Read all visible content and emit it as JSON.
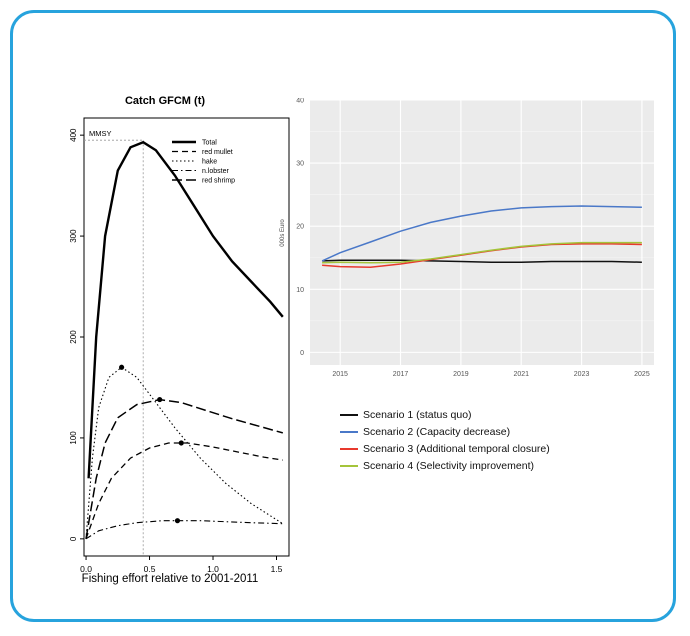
{
  "colors": {
    "frame_border": "#27a3dd"
  },
  "chart_data": [
    {
      "type": "line",
      "title": "Catch GFCM (t)",
      "xlabel": "Fishing effort relative to 2001-2011",
      "ylabel": "",
      "xlim": [
        0,
        1.55
      ],
      "ylim": [
        0,
        400
      ],
      "x_ticks": [
        "0.0",
        "0.5",
        "1.0",
        "1.5"
      ],
      "y_ticks": [
        "0",
        "100",
        "200",
        "300",
        "400"
      ],
      "annotation": {
        "label": "MMSY",
        "x": 0.45,
        "y": 395
      },
      "legend": {
        "position": "top-right",
        "entries": [
          "Total",
          "red mullet",
          "hake",
          "n.lobster",
          "red shrimp"
        ]
      },
      "series": [
        {
          "name": "Total",
          "style": "solid",
          "x": [
            0.02,
            0.08,
            0.15,
            0.25,
            0.35,
            0.45,
            0.55,
            0.7,
            0.85,
            1.0,
            1.15,
            1.3,
            1.45,
            1.55
          ],
          "y": [
            60,
            200,
            300,
            365,
            388,
            393,
            385,
            360,
            330,
            300,
            275,
            255,
            235,
            220
          ]
        },
        {
          "name": "red mullet",
          "style": "dashed",
          "marker": [
            0.75,
            95
          ],
          "x": [
            0,
            0.1,
            0.2,
            0.35,
            0.5,
            0.65,
            0.8,
            1.0,
            1.2,
            1.4,
            1.55
          ],
          "y": [
            0,
            35,
            60,
            80,
            90,
            95,
            95,
            91,
            86,
            81,
            78
          ]
        },
        {
          "name": "hake",
          "style": "dotted",
          "marker": [
            0.28,
            170
          ],
          "x": [
            0,
            0.05,
            0.1,
            0.18,
            0.28,
            0.4,
            0.55,
            0.7,
            0.9,
            1.1,
            1.3,
            1.55
          ],
          "y": [
            0,
            80,
            130,
            160,
            170,
            160,
            135,
            110,
            80,
            55,
            35,
            15
          ]
        },
        {
          "name": "n.lobster",
          "style": "dashdot",
          "marker": [
            0.72,
            18
          ],
          "x": [
            0,
            0.1,
            0.25,
            0.4,
            0.6,
            0.72,
            0.9,
            1.1,
            1.3,
            1.55
          ],
          "y": [
            0,
            8,
            13,
            16,
            18,
            18,
            18,
            17,
            16,
            15
          ]
        },
        {
          "name": "red shrimp",
          "style": "longdash",
          "marker": [
            0.58,
            138
          ],
          "x": [
            0,
            0.08,
            0.15,
            0.25,
            0.4,
            0.58,
            0.75,
            0.95,
            1.15,
            1.35,
            1.55
          ],
          "y": [
            0,
            60,
            95,
            120,
            133,
            138,
            135,
            127,
            119,
            112,
            105
          ]
        }
      ]
    },
    {
      "type": "line",
      "title": "",
      "xlabel": "",
      "ylabel": "000s Euro",
      "xlim": [
        2014,
        2025.4
      ],
      "ylim": [
        -2,
        40
      ],
      "x_ticks": [
        "2015",
        "2017",
        "2019",
        "2021",
        "2023",
        "2025"
      ],
      "y_ticks": [
        "0",
        "10",
        "20",
        "30",
        "40"
      ],
      "grid": true,
      "legend": {
        "position": "bottom",
        "entries": [
          "Scenario 1 (status quo)",
          "Scenario 2 (Capacity decrease)",
          "Scenario 3 (Additional temporal closure)",
          "Scenario 4 (Selectivity improvement)"
        ]
      },
      "series": [
        {
          "name": "Scenario 1 (status quo)",
          "color": "#111111",
          "x": [
            2014.4,
            2015,
            2016,
            2017,
            2018,
            2019,
            2020,
            2021,
            2022,
            2023,
            2024,
            2025
          ],
          "y": [
            14.5,
            14.6,
            14.6,
            14.6,
            14.5,
            14.4,
            14.3,
            14.3,
            14.4,
            14.4,
            14.4,
            14.3
          ]
        },
        {
          "name": "Scenario 2 (Capacity decrease)",
          "color": "#4a78c8",
          "x": [
            2014.4,
            2015,
            2016,
            2017,
            2018,
            2019,
            2020,
            2021,
            2022,
            2023,
            2024,
            2025
          ],
          "y": [
            14.5,
            15.8,
            17.5,
            19.2,
            20.6,
            21.6,
            22.4,
            22.9,
            23.1,
            23.2,
            23.1,
            23.0
          ]
        },
        {
          "name": "Scenario 3 (Additional temporal closure)",
          "color": "#e8392d",
          "x": [
            2014.4,
            2015,
            2016,
            2017,
            2018,
            2019,
            2020,
            2021,
            2022,
            2023,
            2024,
            2025
          ],
          "y": [
            13.8,
            13.6,
            13.5,
            14.0,
            14.7,
            15.4,
            16.1,
            16.7,
            17.1,
            17.2,
            17.2,
            17.1
          ]
        },
        {
          "name": "Scenario 4 (Selectivity improvement)",
          "color": "#a4c43a",
          "x": [
            2014.4,
            2015,
            2016,
            2017,
            2018,
            2019,
            2020,
            2021,
            2022,
            2023,
            2024,
            2025
          ],
          "y": [
            14.2,
            14.3,
            14.2,
            14.3,
            14.8,
            15.5,
            16.2,
            16.8,
            17.2,
            17.4,
            17.4,
            17.4
          ]
        }
      ]
    }
  ]
}
